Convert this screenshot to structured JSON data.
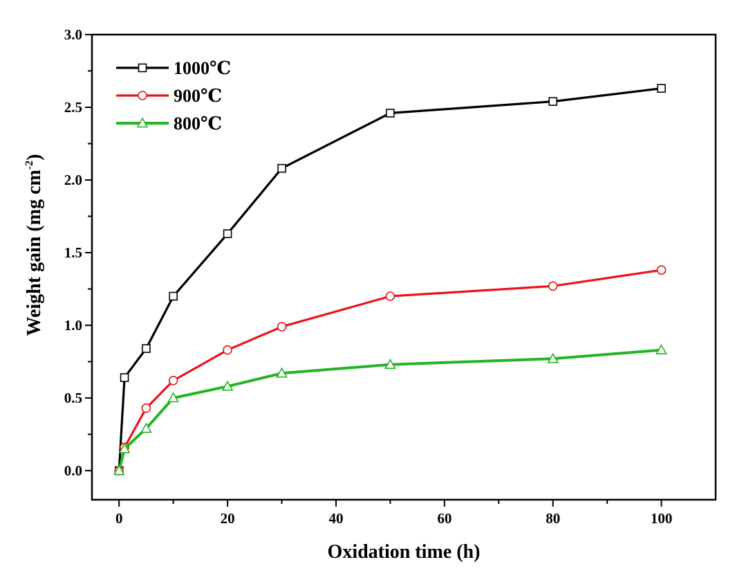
{
  "chart_data": {
    "type": "line",
    "title": "",
    "xlabel": "Oxidation time (h)",
    "ylabel_main": "Weight gain (mg cm",
    "ylabel_sup": "-2",
    "ylabel_close": ")",
    "xlim": [
      -5,
      110
    ],
    "ylim": [
      -0.2,
      3.0
    ],
    "xticks": [
      0,
      20,
      40,
      60,
      80,
      100
    ],
    "xtick_labels": [
      "0",
      "20",
      "40",
      "60",
      "80",
      "100"
    ],
    "xminor": [
      10,
      30,
      50,
      70,
      90
    ],
    "yticks": [
      0.0,
      0.5,
      1.0,
      1.5,
      2.0,
      2.5,
      3.0
    ],
    "ytick_labels": [
      "0.0",
      "0.5",
      "1.0",
      "1.5",
      "2.0",
      "2.5",
      "3.0"
    ],
    "yminor": [
      0.25,
      0.75,
      1.25,
      1.75,
      2.25,
      2.75
    ],
    "grid": false,
    "legend_position": "top-left",
    "series": [
      {
        "name": "1000℃",
        "color": "#000000",
        "marker": "square",
        "x": [
          0,
          1,
          5,
          10,
          20,
          30,
          50,
          80,
          100
        ],
        "y": [
          0.0,
          0.64,
          0.84,
          1.2,
          1.63,
          2.08,
          2.46,
          2.54,
          2.63
        ]
      },
      {
        "name": "900℃",
        "color": "#e8141b",
        "marker": "circle",
        "x": [
          0,
          1,
          5,
          10,
          20,
          30,
          50,
          80,
          100
        ],
        "y": [
          0.0,
          0.16,
          0.43,
          0.62,
          0.83,
          0.99,
          1.2,
          1.27,
          1.38
        ]
      },
      {
        "name": "800℃",
        "color": "#22b422",
        "marker": "triangle",
        "x": [
          0,
          1,
          5,
          10,
          20,
          30,
          50,
          80,
          100
        ],
        "y": [
          0.0,
          0.15,
          0.29,
          0.5,
          0.58,
          0.67,
          0.73,
          0.77,
          0.83
        ]
      }
    ]
  }
}
